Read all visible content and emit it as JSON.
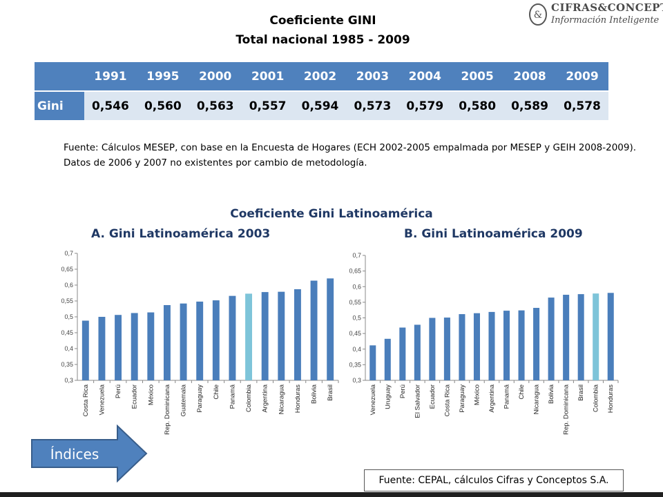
{
  "header": {
    "title_line1": "Coeficiente GINI",
    "title_line2": "Total nacional 1985 - 2009"
  },
  "logo": {
    "name": "CIFRAS&CONCEPTOS",
    "tagline": "Información Inteligente",
    "mark": "&"
  },
  "table": {
    "corner": "",
    "years": [
      "1991",
      "1995",
      "2000",
      "2001",
      "2002",
      "2003",
      "2004",
      "2005",
      "2008",
      "2009"
    ],
    "row_label": "Gini",
    "values": [
      "0,546",
      "0,560",
      "0,563",
      "0,557",
      "0,594",
      "0,573",
      "0,579",
      "0,580",
      "0,589",
      "0,578"
    ]
  },
  "note": {
    "source_text": "Fuente: Cálculos MESEP, con base en la Encuesta de Hogares (ECH 2002-2005 empalmada por MESEP y GEIH 2008-2009). Datos de 2006 y 2007 no existentes por cambio de metodología."
  },
  "section": {
    "title": "Coeficiente Gini Latinoamérica",
    "chart_a_title": "A. Gini Latinoamérica 2003",
    "chart_b_title": "B. Gini Latinoamérica 2009"
  },
  "source2": "Fuente: CEPAL, cálculos Cifras y Conceptos S.A.",
  "nav_button": "Índices",
  "colors": {
    "bar": "#4a7ebb",
    "highlight": "#7ec4d9",
    "table_header": "#4f81bd",
    "table_row": "#dce6f1",
    "heading": "#1f3864"
  },
  "chart_data": [
    {
      "type": "bar",
      "title": "A. Gini Latinoamérica 2003",
      "categories": [
        "Costa Rica",
        "Venezuela",
        "Perú",
        "Ecuador",
        "México",
        "Rep. Dominicana",
        "Guatemala",
        "Paraguay",
        "Chile",
        "Panamá",
        "Colombia",
        "Argentina",
        "Nicaragua",
        "Honduras",
        "Bolivia",
        "Brasil"
      ],
      "values": [
        0.488,
        0.5,
        0.506,
        0.512,
        0.514,
        0.537,
        0.542,
        0.548,
        0.552,
        0.566,
        0.573,
        0.578,
        0.579,
        0.587,
        0.614,
        0.621
      ],
      "highlight": "Colombia",
      "ylim": [
        0.3,
        0.7
      ],
      "yticks": [
        "0,3",
        "0,35",
        "0,4",
        "0,45",
        "0,5",
        "0,55",
        "0,6",
        "0,65",
        "0,7"
      ],
      "grid": false
    },
    {
      "type": "bar",
      "title": "B. Gini Latinoamérica 2009",
      "categories": [
        "Venezuela",
        "Uruguay",
        "Perú",
        "El Salvador",
        "Ecuador",
        "Costa Rica",
        "Paraguay",
        "México",
        "Argentina",
        "Panamá",
        "Chile",
        "Nicaragua",
        "Bolivia",
        "Rep. Dominicana",
        "Brasil",
        "Colombia",
        "Honduras"
      ],
      "values": [
        0.412,
        0.433,
        0.469,
        0.478,
        0.5,
        0.501,
        0.512,
        0.515,
        0.519,
        0.523,
        0.524,
        0.532,
        0.565,
        0.574,
        0.576,
        0.578,
        0.58
      ],
      "highlight": "Colombia",
      "ylim": [
        0.3,
        0.7
      ],
      "yticks": [
        "0,3",
        "0,35",
        "0,4",
        "0,45",
        "0,5",
        "0,55",
        "0,6",
        "0,65",
        "0,7"
      ],
      "grid": false
    }
  ]
}
